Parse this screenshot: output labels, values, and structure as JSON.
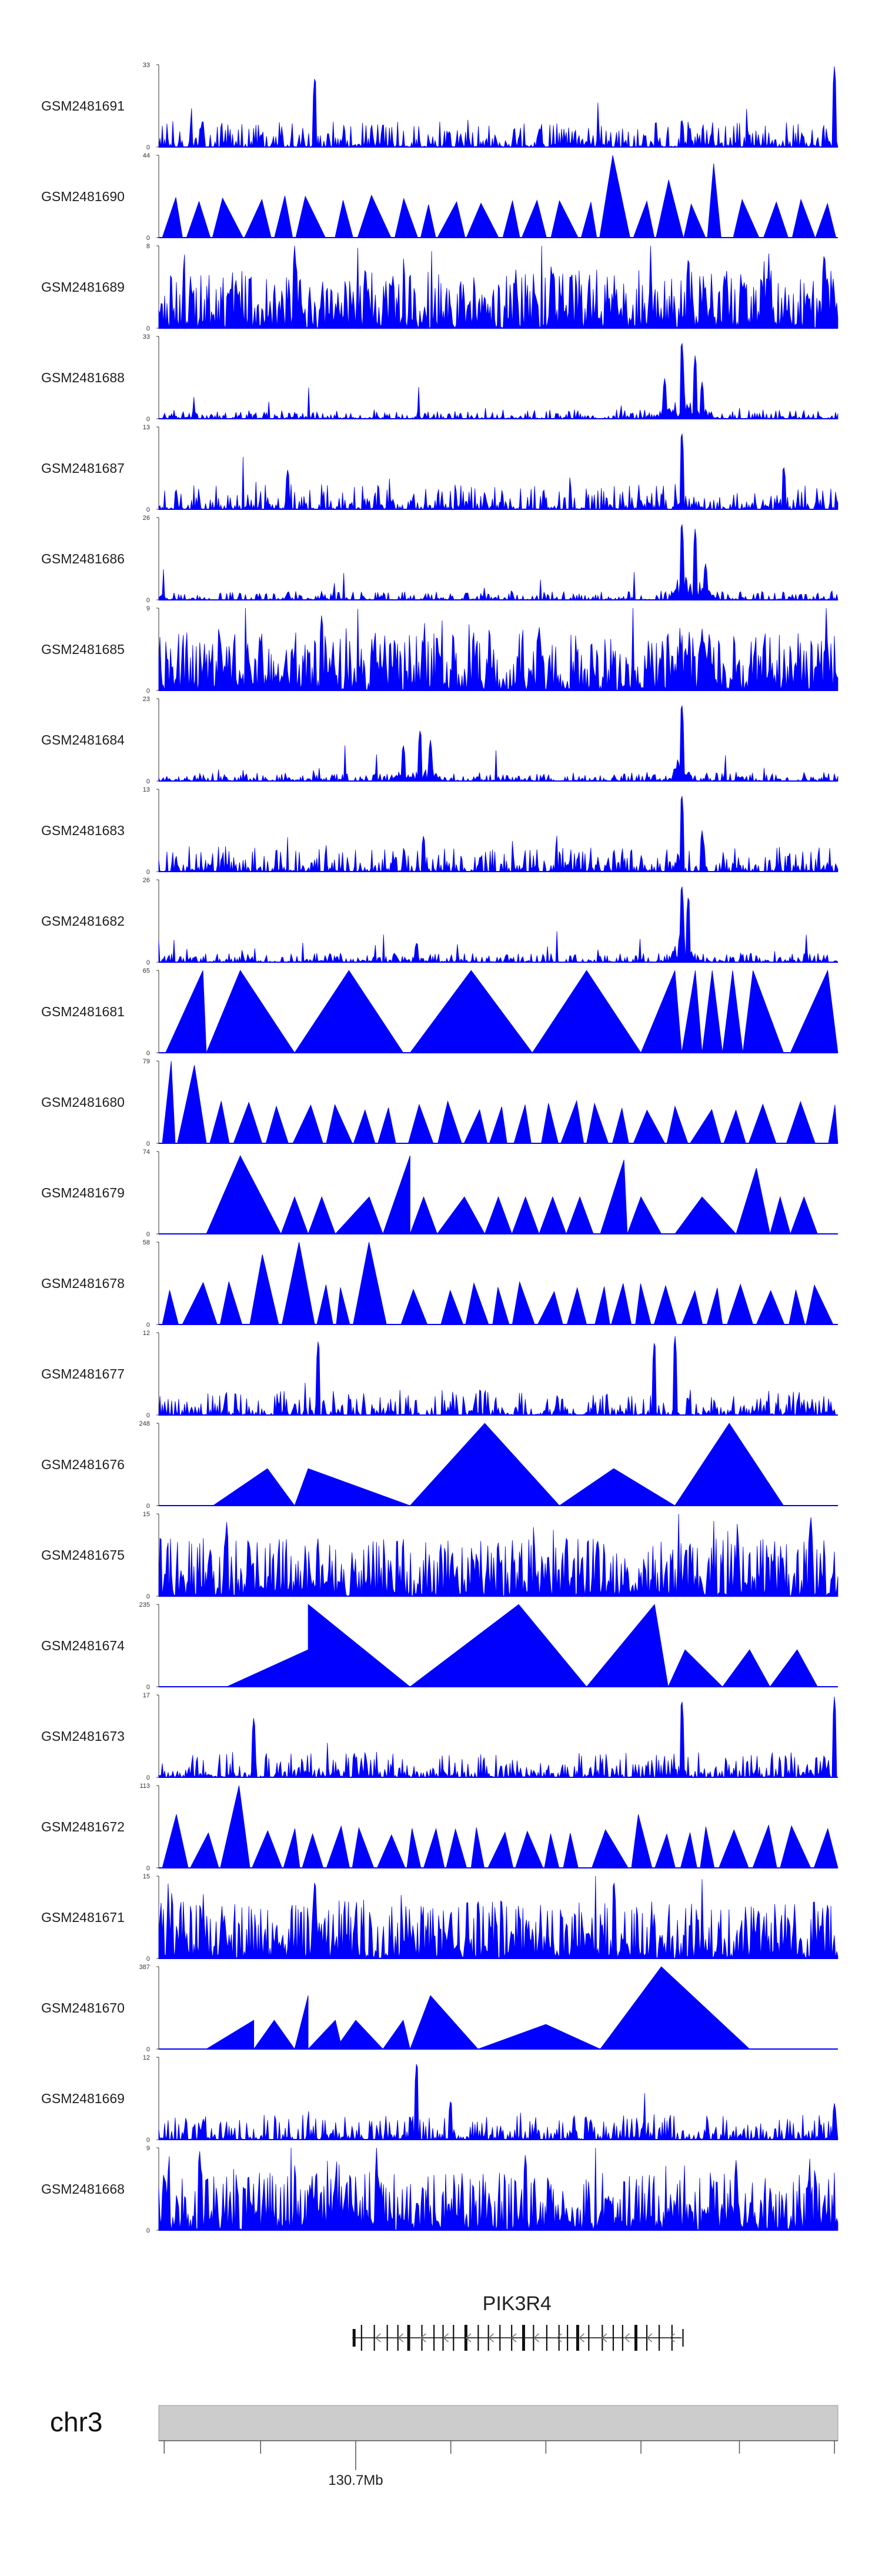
{
  "chart_data": {
    "type": "area",
    "title": "",
    "xlabel": "",
    "ylabel": "",
    "fill_color": "#0000ff",
    "tracks": [
      {
        "name": "GSM2481691",
        "ymax": "33",
        "ymin": "0",
        "pattern": "noise",
        "peaks": [
          [
            0.23,
            0.9
          ],
          [
            0.995,
            1.0
          ],
          [
            0.77,
            0.35
          ]
        ]
      },
      {
        "name": "GSM2481690",
        "ymax": "44",
        "ymin": "0",
        "pattern": "triangles",
        "peaks": [
          [
            0.68,
            1.0
          ],
          [
            0.76,
            0.7
          ],
          [
            0.82,
            0.9
          ]
        ]
      },
      {
        "name": "GSM2481689",
        "ymax": "8",
        "ymin": "0",
        "pattern": "dense",
        "peaks": [
          [
            0.2,
            1.0
          ],
          [
            0.78,
            0.9
          ],
          [
            0.98,
            0.95
          ]
        ]
      },
      {
        "name": "GSM2481688",
        "ymax": "33",
        "ymin": "0",
        "pattern": "cluster",
        "peaks": [
          [
            0.77,
            1.0
          ],
          [
            0.79,
            0.8
          ],
          [
            0.8,
            0.45
          ],
          [
            0.745,
            0.5
          ]
        ]
      },
      {
        "name": "GSM2481687",
        "ymax": "13",
        "ymin": "0",
        "pattern": "noise",
        "peaks": [
          [
            0.77,
            1.0
          ],
          [
            0.19,
            0.5
          ],
          [
            0.92,
            0.55
          ]
        ]
      },
      {
        "name": "GSM2481686",
        "ymax": "26",
        "ymin": "0",
        "pattern": "cluster",
        "peaks": [
          [
            0.77,
            1.0
          ],
          [
            0.79,
            0.9
          ],
          [
            0.805,
            0.45
          ]
        ]
      },
      {
        "name": "GSM2481685",
        "ymax": "9",
        "ymin": "0",
        "pattern": "dense",
        "peaks": [
          [
            0.24,
            0.95
          ],
          [
            0.56,
            0.8
          ],
          [
            0.8,
            0.75
          ]
        ]
      },
      {
        "name": "GSM2481684",
        "ymax": "23",
        "ymin": "0",
        "pattern": "cluster",
        "peaks": [
          [
            0.77,
            1.0
          ],
          [
            0.385,
            0.65
          ],
          [
            0.36,
            0.45
          ],
          [
            0.4,
            0.5
          ]
        ]
      },
      {
        "name": "GSM2481683",
        "ymax": "13",
        "ymin": "0",
        "pattern": "noise",
        "peaks": [
          [
            0.77,
            1.0
          ],
          [
            0.39,
            0.45
          ],
          [
            0.8,
            0.5
          ]
        ]
      },
      {
        "name": "GSM2481682",
        "ymax": "26",
        "ymin": "0",
        "pattern": "cluster",
        "peaks": [
          [
            0.77,
            1.0
          ],
          [
            0.78,
            0.85
          ],
          [
            0.38,
            0.25
          ]
        ]
      },
      {
        "name": "GSM2481681",
        "ymax": "65",
        "ymin": "0",
        "pattern": "bigtri",
        "triangles": [
          [
            0.01,
            0.07,
            0.065,
            1.0
          ],
          [
            0.07,
            0.2,
            0.12,
            1.0
          ],
          [
            0.2,
            0.36,
            0.28,
            1.0
          ],
          [
            0.37,
            0.55,
            0.46,
            1.0
          ],
          [
            0.55,
            0.71,
            0.63,
            1.0
          ],
          [
            0.71,
            0.77,
            0.76,
            1.0
          ],
          [
            0.77,
            0.8,
            0.79,
            1.0
          ],
          [
            0.8,
            0.83,
            0.815,
            1.0
          ],
          [
            0.83,
            0.86,
            0.845,
            1.0
          ],
          [
            0.86,
            0.92,
            0.875,
            1.0
          ],
          [
            0.93,
            1.0,
            0.985,
            1.0
          ]
        ]
      },
      {
        "name": "GSM2481680",
        "ymax": "79",
        "ymin": "0",
        "pattern": "triangles",
        "peaks": [
          [
            0.02,
            1.0
          ],
          [
            0.06,
            0.95
          ],
          [
            0.175,
            0.45
          ]
        ]
      },
      {
        "name": "GSM2481679",
        "ymax": "74",
        "ymin": "0",
        "pattern": "bigtri",
        "triangles": [
          [
            0.07,
            0.18,
            0.12,
            0.95
          ],
          [
            0.18,
            0.22,
            0.2,
            0.45
          ],
          [
            0.22,
            0.26,
            0.24,
            0.45
          ],
          [
            0.26,
            0.33,
            0.31,
            0.45
          ],
          [
            0.33,
            0.37,
            0.37,
            0.95
          ],
          [
            0.37,
            0.41,
            0.39,
            0.45
          ],
          [
            0.41,
            0.48,
            0.45,
            0.45
          ],
          [
            0.48,
            0.52,
            0.5,
            0.45
          ],
          [
            0.52,
            0.56,
            0.54,
            0.45
          ],
          [
            0.56,
            0.6,
            0.58,
            0.45
          ],
          [
            0.6,
            0.64,
            0.62,
            0.45
          ],
          [
            0.65,
            0.69,
            0.685,
            0.9
          ],
          [
            0.69,
            0.74,
            0.71,
            0.45
          ],
          [
            0.76,
            0.85,
            0.8,
            0.45
          ],
          [
            0.85,
            0.9,
            0.88,
            0.8
          ],
          [
            0.9,
            0.93,
            0.915,
            0.45
          ],
          [
            0.93,
            0.97,
            0.95,
            0.45
          ]
        ]
      },
      {
        "name": "GSM2481678",
        "ymax": "58",
        "ymin": "0",
        "pattern": "triangles",
        "peaks": [
          [
            0.16,
            0.85
          ],
          [
            0.19,
            1.0
          ],
          [
            0.32,
            1.0
          ],
          [
            0.34,
            0.9
          ],
          [
            0.22,
            0.6
          ]
        ]
      },
      {
        "name": "GSM2481677",
        "ymax": "12",
        "ymin": "0",
        "pattern": "noise",
        "peaks": [
          [
            0.235,
            0.95
          ],
          [
            0.73,
            0.95
          ],
          [
            0.76,
            1.0
          ]
        ]
      },
      {
        "name": "GSM2481676",
        "ymax": "248",
        "ymin": "0",
        "pattern": "bigtri",
        "triangles": [
          [
            0.08,
            0.2,
            0.16,
            0.45
          ],
          [
            0.2,
            0.37,
            0.22,
            0.45
          ],
          [
            0.37,
            0.59,
            0.48,
            1.0
          ],
          [
            0.59,
            0.76,
            0.67,
            0.45
          ],
          [
            0.76,
            0.92,
            0.84,
            1.0
          ]
        ]
      },
      {
        "name": "GSM2481675",
        "ymax": "15",
        "ymin": "0",
        "pattern": "dense",
        "peaks": [
          [
            0.1,
            0.9
          ],
          [
            0.96,
            1.0
          ],
          [
            0.6,
            0.7
          ]
        ]
      },
      {
        "name": "GSM2481674",
        "ymax": "235",
        "ymin": "0",
        "pattern": "bigtri",
        "triangles": [
          [
            0.1,
            0.22,
            0.22,
            0.45
          ],
          [
            0.22,
            0.37,
            0.22,
            1.0
          ],
          [
            0.37,
            0.63,
            0.53,
            1.0
          ],
          [
            0.63,
            0.75,
            0.73,
            1.0
          ],
          [
            0.75,
            0.83,
            0.775,
            0.45
          ],
          [
            0.83,
            0.9,
            0.87,
            0.45
          ],
          [
            0.9,
            0.97,
            0.94,
            0.45
          ]
        ]
      },
      {
        "name": "GSM2481673",
        "ymax": "17",
        "ymin": "0",
        "pattern": "noise",
        "peaks": [
          [
            0.77,
            1.0
          ],
          [
            0.995,
            1.0
          ],
          [
            0.14,
            0.75
          ]
        ]
      },
      {
        "name": "GSM2481672",
        "ymax": "113",
        "ymin": "0",
        "pattern": "triangles",
        "peaks": [
          [
            0.11,
            1.0
          ],
          [
            0.02,
            0.65
          ],
          [
            0.7,
            0.65
          ]
        ]
      },
      {
        "name": "GSM2481671",
        "ymax": "15",
        "ymin": "0",
        "pattern": "dense",
        "peaks": [
          [
            0.23,
            1.0
          ],
          [
            0.67,
            1.0
          ],
          [
            0.47,
            0.75
          ]
        ]
      },
      {
        "name": "GSM2481670",
        "ymax": "387",
        "ymin": "0",
        "pattern": "bigtri",
        "triangles": [
          [
            0.07,
            0.14,
            0.14,
            0.35
          ],
          [
            0.14,
            0.2,
            0.17,
            0.35
          ],
          [
            0.2,
            0.22,
            0.22,
            0.65
          ],
          [
            0.22,
            0.27,
            0.26,
            0.35
          ],
          [
            0.26,
            0.33,
            0.29,
            0.35
          ],
          [
            0.33,
            0.37,
            0.36,
            0.35
          ],
          [
            0.37,
            0.47,
            0.4,
            0.65
          ],
          [
            0.47,
            0.65,
            0.57,
            0.3
          ],
          [
            0.65,
            0.87,
            0.74,
            1.0
          ]
        ]
      },
      {
        "name": "GSM2481669",
        "ymax": "12",
        "ymin": "0",
        "pattern": "noise",
        "peaks": [
          [
            0.38,
            1.0
          ],
          [
            0.995,
            0.45
          ],
          [
            0.43,
            0.5
          ]
        ]
      },
      {
        "name": "GSM2481668",
        "ymax": "9",
        "ymin": "0",
        "pattern": "dense",
        "peaks": [
          [
            0.06,
            1.0
          ],
          [
            0.54,
            0.95
          ],
          [
            0.85,
            0.85
          ]
        ]
      }
    ],
    "gene": {
      "name": "PIK3R4",
      "strand": "-",
      "start": 0.285,
      "end": 0.77
    },
    "chromosome": {
      "name": "chr3",
      "tick_label": "130.7Mb",
      "tick_positions": [
        0.008,
        0.15,
        0.29,
        0.43,
        0.57,
        0.71,
        0.855,
        0.995
      ],
      "labeled_tick_index": 2
    }
  }
}
